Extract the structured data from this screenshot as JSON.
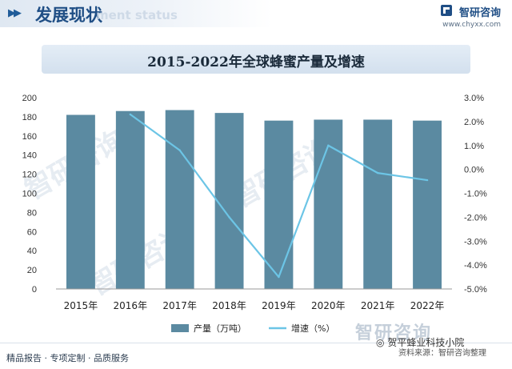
{
  "header": {
    "title": "发展现状",
    "ghost_text": "ment status",
    "brand_name": "智研咨询",
    "brand_url": "www.chyxx.com"
  },
  "chart_data": {
    "type": "bar+line",
    "title": "2015-2022年全球蜂蜜产量及增速",
    "categories": [
      "2015年",
      "2016年",
      "2017年",
      "2018年",
      "2019年",
      "2020年",
      "2021年",
      "2022年"
    ],
    "series": [
      {
        "name": "产量（万吨）",
        "type": "bar",
        "axis": "left",
        "color": "#5b8aa1",
        "values": [
          182,
          186,
          187,
          184,
          176,
          177,
          177,
          176
        ]
      },
      {
        "name": "增速（%）",
        "type": "line",
        "axis": "right",
        "color": "#6cc5e6",
        "values": [
          null,
          2.3,
          0.8,
          -2.0,
          -4.5,
          1.0,
          -0.15,
          -0.45
        ]
      }
    ],
    "y_left": {
      "min": 0,
      "max": 200,
      "step": 20,
      "ticks": [
        "0",
        "20",
        "40",
        "60",
        "80",
        "100",
        "120",
        "140",
        "160",
        "180",
        "200"
      ]
    },
    "y_right": {
      "min": -5,
      "max": 3,
      "step": 1,
      "ticks": [
        "-5.0%",
        "-4.0%",
        "-3.0%",
        "-2.0%",
        "-1.0%",
        "0.0%",
        "1.0%",
        "2.0%",
        "3.0%"
      ]
    },
    "grid": false,
    "legend_position": "bottom"
  },
  "footer": {
    "tagline": "精品报告 · 专项定制 · 品质服务",
    "watermark": "智研咨询",
    "source": "资料来源：智研咨询整理",
    "social": "贺平蜂业科技小院"
  },
  "colors": {
    "accent": "#1f4e85",
    "bar": "#5b8aa1",
    "line": "#6cc5e6"
  }
}
